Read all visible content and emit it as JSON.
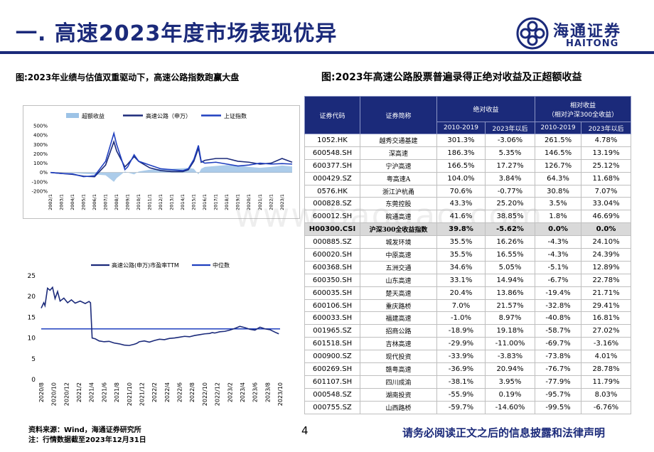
{
  "title": "一. 高速2023年度市场表现优异",
  "logo": {
    "cn": "海通证券",
    "en": "HAITONG"
  },
  "watermark": "www.baogao.com",
  "left_heading": "图:2023年业绩与估值双重驱动下，高速公路指数跑赢大盘",
  "right_heading": "图:2023年高速公路股票普遍录得正绝对收益及正超额收益",
  "colors": {
    "brand": "#1b2a7a",
    "bar": "#9dc3e6",
    "line": "#1b2a7a",
    "mid": "#1f3fbf"
  },
  "chart_data": [
    {
      "type": "area",
      "legend": [
        "超额收益",
        "高速公路（申万）",
        "上证指数"
      ],
      "legend_placement": "top",
      "yticks": [
        "500%",
        "400%",
        "300%",
        "200%",
        "100%",
        "0%",
        "-100%",
        "-200%"
      ],
      "ylim": [
        -200,
        500
      ],
      "xticks": [
        "2002/1",
        "2003/1",
        "2004/1",
        "2005/1",
        "2006/1",
        "2007/1",
        "2008/1",
        "2009/1",
        "2010/1",
        "2011/1",
        "2012/1",
        "2013/1",
        "2014/1",
        "2015/1",
        "2016/1",
        "2017/1",
        "2018/1",
        "2019/1",
        "2020/1",
        "2021/1",
        "2022/1",
        "2023/1"
      ],
      "x": [
        "2002/1",
        "2003/1",
        "2004/1",
        "2005/1",
        "2006/1",
        "2007/1",
        "2007/10",
        "2008/1",
        "2008/10",
        "2009/1",
        "2009/8",
        "2010/1",
        "2011/1",
        "2012/1",
        "2013/1",
        "2014/1",
        "2014/7",
        "2015/1",
        "2015/6",
        "2015/9",
        "2016/1",
        "2017/1",
        "2018/1",
        "2019/1",
        "2020/1",
        "2021/1",
        "2022/1",
        "2023/1",
        "2023/12"
      ],
      "series": [
        {
          "name": "超额收益",
          "values": [
            0,
            0,
            -5,
            -15,
            -20,
            -30,
            -100,
            -60,
            10,
            0,
            -20,
            10,
            30,
            40,
            40,
            45,
            50,
            40,
            -20,
            40,
            60,
            70,
            80,
            75,
            60,
            50,
            60,
            75,
            65
          ]
        },
        {
          "name": "高速公路（申万）",
          "values": [
            0,
            -10,
            -20,
            -40,
            -45,
            80,
            330,
            230,
            60,
            90,
            170,
            120,
            50,
            20,
            10,
            10,
            30,
            120,
            260,
            110,
            130,
            150,
            150,
            120,
            110,
            90,
            100,
            150,
            110
          ]
        },
        {
          "name": "上证指数",
          "values": [
            0,
            -10,
            -15,
            -45,
            -35,
            120,
            420,
            300,
            30,
            60,
            190,
            120,
            80,
            40,
            30,
            20,
            40,
            140,
            290,
            120,
            100,
            110,
            90,
            70,
            80,
            100,
            90,
            95,
            90
          ]
        }
      ]
    },
    {
      "type": "line",
      "legend": [
        "高速公路(申万)市盈率TTM",
        "中位数"
      ],
      "legend_placement": "top",
      "yticks": [
        0,
        5,
        10,
        15,
        20,
        25
      ],
      "ylim": [
        0,
        25
      ],
      "xticks": [
        "2020/8",
        "2020/10",
        "2020/12",
        "2021/2",
        "2021/4",
        "2021/6",
        "2021/8",
        "2021/10",
        "2021/12",
        "2022/2",
        "2022/4",
        "2022/6",
        "2022/8",
        "2022/10",
        "2022/12",
        "2023/2",
        "2023/4",
        "2023/6",
        "2023/8",
        "2023/10"
      ],
      "median": 12.2,
      "series": [
        {
          "name": "高速公路(申万)市盈率TTM",
          "x": [
            0,
            0.2,
            0.3,
            0.5,
            0.7,
            0.9,
            1.1,
            1.3,
            1.5,
            1.8,
            2.1,
            2.4,
            2.7,
            3.1,
            3.5,
            3.8,
            3.92,
            4.05,
            4.3,
            4.6,
            5.0,
            5.4,
            5.8,
            6.2,
            6.6,
            7.0,
            7.4,
            7.6,
            7.8,
            8.2,
            8.6,
            9.0,
            9.4,
            9.8,
            10.2,
            10.6,
            11.0,
            11.4,
            11.8,
            12.2,
            12.6,
            13.0,
            13.4,
            13.6,
            13.8,
            14.2,
            14.6,
            15.0,
            15.4,
            15.8,
            16.2,
            16.6,
            17.0,
            17.4,
            17.8,
            18.2,
            18.6,
            18.9
          ],
          "values": [
            17.2,
            18.5,
            17.8,
            22,
            21.5,
            22.2,
            19.5,
            21.2,
            18.9,
            19.6,
            18.5,
            19.2,
            18.4,
            18.9,
            18.3,
            18.8,
            18.5,
            10.0,
            9.8,
            9.3,
            9.1,
            9.2,
            8.8,
            8.6,
            8.3,
            8.2,
            8.5,
            8.7,
            9.1,
            9.3,
            9.0,
            9.4,
            9.7,
            9.6,
            9.9,
            10.0,
            10.2,
            10.4,
            10.3,
            10.6,
            10.8,
            11.0,
            11.1,
            11.3,
            11.2,
            11.5,
            11.6,
            11.9,
            12.3,
            12.8,
            12.5,
            12.1,
            11.9,
            12.6,
            12.2,
            12.0,
            11.4,
            11.0
          ]
        }
      ]
    }
  ],
  "table": {
    "headers": {
      "code": "证券代码",
      "name": "证券简称",
      "abs": "绝对收益",
      "rel": "相对收益",
      "rel_sub": "（相对沪深300全收益）",
      "p1": "2010-2019",
      "p2": "2023年以后",
      "p3": "2010-2019",
      "p4": "2023年以后"
    },
    "rows": [
      [
        "1052.HK",
        "越秀交通基建",
        "301.3%",
        "-3.06%",
        "261.5%",
        "4.78%"
      ],
      [
        "600548.SH",
        "深高速",
        "186.3%",
        "5.35%",
        "146.5%",
        "13.19%"
      ],
      [
        "600377.SH",
        "宁沪高速",
        "166.5%",
        "17.27%",
        "126.7%",
        "25.12%"
      ],
      [
        "000429.SZ",
        "粤高速A",
        "104.0%",
        "3.84%",
        "64.3%",
        "11.68%"
      ],
      [
        "0576.HK",
        "浙江沪杭甬",
        "70.6%",
        "-0.77%",
        "30.8%",
        "7.07%"
      ],
      [
        "000828.SZ",
        "东莞控股",
        "43.3%",
        "25.20%",
        "3.5%",
        "33.04%"
      ],
      [
        "600012.SH",
        "皖通高速",
        "41.6%",
        "38.85%",
        "1.8%",
        "46.69%"
      ],
      [
        "H00300.CSI",
        "沪深300全收益指数",
        "39.8%",
        "-5.62%",
        "0.0%",
        "0.0%"
      ],
      [
        "000885.SZ",
        "城发环境",
        "35.5%",
        "16.26%",
        "-4.3%",
        "24.10%"
      ],
      [
        "600020.SH",
        "中原高速",
        "35.5%",
        "16.55%",
        "-4.3%",
        "24.39%"
      ],
      [
        "600368.SH",
        "五洲交通",
        "34.6%",
        "5.05%",
        "-5.1%",
        "12.89%"
      ],
      [
        "600350.SH",
        "山东高速",
        "33.1%",
        "14.94%",
        "-6.7%",
        "22.78%"
      ],
      [
        "600035.SH",
        "楚天高速",
        "20.4%",
        "13.86%",
        "-19.4%",
        "21.71%"
      ],
      [
        "600106.SH",
        "重庆路桥",
        "7.0%",
        "21.57%",
        "-32.8%",
        "29.41%"
      ],
      [
        "600033.SH",
        "福建高速",
        "-1.0%",
        "8.97%",
        "-40.8%",
        "16.81%"
      ],
      [
        "001965.SZ",
        "招商公路",
        "-18.9%",
        "19.18%",
        "-58.7%",
        "27.02%"
      ],
      [
        "601518.SH",
        "吉林高速",
        "-29.9%",
        "-11.00%",
        "-69.7%",
        "-3.16%"
      ],
      [
        "000900.SZ",
        "现代投资",
        "-33.9%",
        "-3.83%",
        "-73.8%",
        "4.01%"
      ],
      [
        "600269.SH",
        "赣粤高速",
        "-36.9%",
        "20.94%",
        "-76.7%",
        "28.78%"
      ],
      [
        "601107.SH",
        "四川成渝",
        "-38.1%",
        "3.95%",
        "-77.9%",
        "11.79%"
      ],
      [
        "000548.SZ",
        "湖南投资",
        "-55.9%",
        "0.19%",
        "-95.7%",
        "8.03%"
      ],
      [
        "000755.SZ",
        "山西路桥",
        "-59.7%",
        "-14.60%",
        "-99.5%",
        "-6.76%"
      ]
    ],
    "highlight_index": 7
  },
  "footer": {
    "source": "资料来源：Wind，海通证券研究所",
    "note": "注：行情数据截至2023年12月31日",
    "page": "4",
    "disclaimer": "请务必阅读正文之后的信息披露和法律声明"
  }
}
